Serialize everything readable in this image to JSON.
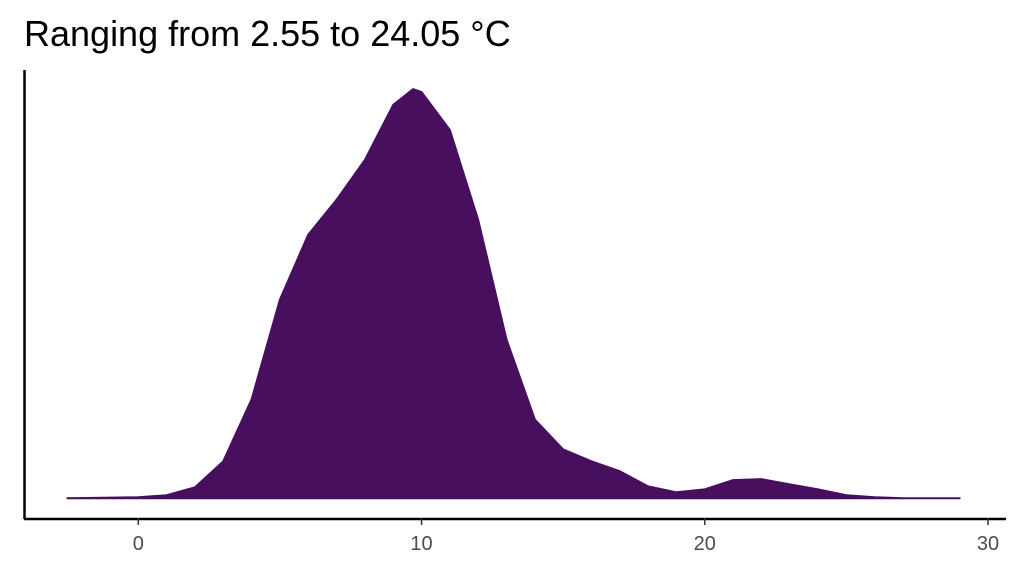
{
  "chart_data": {
    "type": "area",
    "title": "Ranging from 2.55 to 24.05 °C",
    "x": [
      -2.5,
      0,
      1,
      2,
      3,
      4,
      5,
      6,
      7,
      8,
      9,
      9.7,
      10,
      11,
      12,
      13,
      14,
      15,
      16,
      17,
      18,
      19,
      20,
      21,
      22,
      23,
      24,
      25,
      26,
      27,
      29
    ],
    "values": [
      0,
      0.0003,
      0.0009,
      0.0033,
      0.0112,
      0.03,
      0.0603,
      0.08,
      0.0906,
      0.1027,
      0.1194,
      0.1242,
      0.1233,
      0.1118,
      0.0845,
      0.0482,
      0.0239,
      0.0148,
      0.0112,
      0.0082,
      0.0036,
      0.0018,
      0.0027,
      0.0055,
      0.0058,
      0.0042,
      0.0027,
      0.0009,
      0.0003,
      0,
      0
    ],
    "color": "#470f5e",
    "xlim": [
      -4,
      30.6
    ],
    "xticks": [
      0,
      10,
      20,
      30
    ],
    "ylim": [
      -0.006,
      0.13
    ]
  }
}
